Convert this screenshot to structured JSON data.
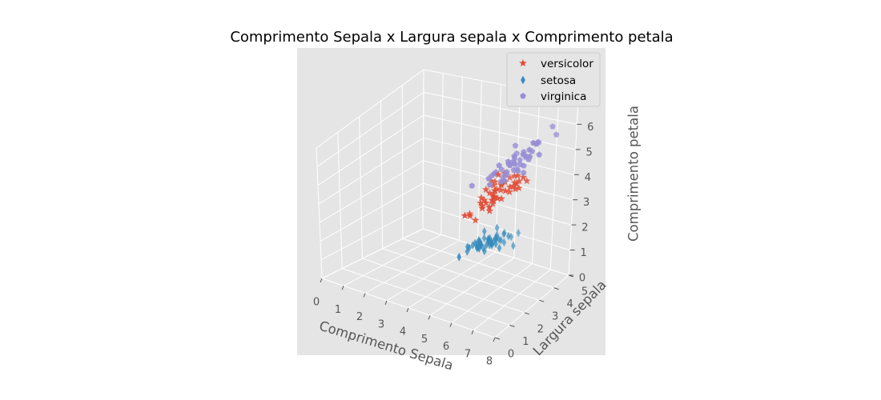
{
  "chart_data": {
    "type": "scatter",
    "projection": "3d",
    "title": "Comprimento Sepala x Largura sepala x Comprimento petala",
    "xlabel": "Comprimento Sepala",
    "ylabel": "Largura sepala",
    "zlabel": "Comprimento petala",
    "xlim": [
      0,
      8
    ],
    "ylim": [
      0,
      5
    ],
    "zlim": [
      0,
      7
    ],
    "xticks": [
      "0",
      "1",
      "2",
      "3",
      "4",
      "5",
      "6",
      "7",
      "8"
    ],
    "yticks": [
      "0",
      "1",
      "2",
      "3",
      "4",
      "5"
    ],
    "zticks": [
      "0",
      "1",
      "2",
      "3",
      "4",
      "5",
      "6",
      "7"
    ],
    "grid": true,
    "legend_position": "top-right",
    "colors": {
      "pane": "#e5e5e5",
      "grid": "#ffffff",
      "versicolor": "#e24a33",
      "setosa": "#348abd",
      "virginica": "#988ed5"
    },
    "series": [
      {
        "name": "versicolor",
        "marker": "star",
        "color": "#e24a33",
        "x": [
          7.0,
          6.4,
          6.9,
          5.5,
          6.5,
          5.7,
          6.3,
          4.9,
          6.6,
          5.2,
          5.0,
          5.9,
          6.0,
          6.1,
          5.6,
          6.7,
          5.6,
          5.8,
          6.2,
          5.6,
          5.9,
          6.1,
          6.3,
          6.1,
          6.4,
          6.6,
          6.8,
          6.7,
          6.0,
          5.7,
          5.5,
          5.5,
          5.8,
          6.0,
          5.4,
          6.0,
          6.7,
          6.3,
          5.6,
          5.5,
          5.5,
          6.1,
          5.8,
          5.0,
          5.6,
          5.7,
          5.7,
          6.2,
          5.1,
          5.7
        ],
        "y": [
          3.2,
          3.2,
          3.1,
          2.3,
          2.8,
          2.8,
          3.3,
          2.4,
          2.9,
          2.7,
          2.0,
          3.0,
          2.2,
          2.9,
          2.9,
          3.1,
          3.0,
          2.7,
          2.2,
          2.5,
          3.2,
          2.8,
          2.5,
          2.8,
          2.9,
          3.0,
          2.8,
          3.0,
          2.9,
          2.6,
          2.4,
          2.4,
          2.7,
          2.7,
          3.0,
          3.4,
          3.1,
          2.3,
          3.0,
          2.5,
          2.6,
          3.0,
          2.6,
          2.3,
          2.7,
          3.0,
          2.9,
          2.9,
          2.5,
          2.8
        ],
        "z": [
          4.7,
          4.5,
          4.9,
          4.0,
          4.6,
          4.5,
          4.7,
          3.3,
          4.6,
          3.9,
          3.5,
          4.2,
          4.0,
          4.7,
          3.6,
          4.4,
          4.5,
          4.1,
          4.5,
          3.9,
          4.8,
          4.0,
          4.9,
          4.7,
          4.3,
          4.4,
          4.8,
          5.0,
          4.5,
          3.5,
          3.8,
          3.7,
          3.9,
          5.1,
          4.5,
          4.5,
          4.7,
          4.4,
          4.1,
          4.0,
          4.4,
          4.6,
          4.0,
          3.3,
          4.2,
          4.2,
          4.2,
          4.3,
          3.0,
          4.1
        ]
      },
      {
        "name": "setosa",
        "marker": "thin_diamond",
        "color": "#348abd",
        "x": [
          5.1,
          4.9,
          4.7,
          4.6,
          5.0,
          5.4,
          4.6,
          5.0,
          4.4,
          4.9,
          5.4,
          4.8,
          4.8,
          4.3,
          5.8,
          5.7,
          5.4,
          5.1,
          5.7,
          5.1,
          5.4,
          5.1,
          4.6,
          5.1,
          4.8,
          5.0,
          5.0,
          5.2,
          5.2,
          4.7,
          4.8,
          5.4,
          5.2,
          5.5,
          4.9,
          5.0,
          5.5,
          4.9,
          4.4,
          5.1,
          5.0,
          4.5,
          4.4,
          5.0,
          5.1,
          4.8,
          5.1,
          4.6,
          5.3,
          5.0
        ],
        "y": [
          3.5,
          3.0,
          3.2,
          3.1,
          3.6,
          3.9,
          3.4,
          3.4,
          2.9,
          3.1,
          3.7,
          3.4,
          3.0,
          3.0,
          4.0,
          4.4,
          3.9,
          3.5,
          3.8,
          3.8,
          3.4,
          3.7,
          3.6,
          3.3,
          3.4,
          3.0,
          3.4,
          3.5,
          3.4,
          3.2,
          3.1,
          3.4,
          4.1,
          4.2,
          3.1,
          3.2,
          3.5,
          3.6,
          3.0,
          3.4,
          3.5,
          2.3,
          3.2,
          3.5,
          3.8,
          3.0,
          3.8,
          3.2,
          3.7,
          3.3
        ],
        "z": [
          1.4,
          1.4,
          1.3,
          1.5,
          1.4,
          1.7,
          1.4,
          1.5,
          1.4,
          1.5,
          1.5,
          1.6,
          1.4,
          1.1,
          1.2,
          1.5,
          1.3,
          1.4,
          1.7,
          1.5,
          1.7,
          1.5,
          1.0,
          1.7,
          1.9,
          1.6,
          1.6,
          1.5,
          1.4,
          1.6,
          1.6,
          1.5,
          1.5,
          1.4,
          1.5,
          1.2,
          1.3,
          1.4,
          1.3,
          1.5,
          1.3,
          1.3,
          1.3,
          1.6,
          1.9,
          1.4,
          1.6,
          1.4,
          1.5,
          1.4
        ]
      },
      {
        "name": "virginica",
        "marker": "pentagon",
        "color": "#988ed5",
        "x": [
          6.3,
          5.8,
          7.1,
          6.3,
          6.5,
          7.6,
          4.9,
          7.3,
          6.7,
          7.2,
          6.5,
          6.4,
          6.8,
          5.7,
          5.8,
          6.4,
          6.5,
          7.7,
          7.7,
          6.0,
          6.9,
          5.6,
          7.7,
          6.3,
          6.7,
          7.2,
          6.2,
          6.1,
          6.4,
          7.2,
          7.4,
          7.9,
          6.4,
          6.3,
          6.1,
          7.7,
          6.3,
          6.4,
          6.0,
          6.9,
          6.7,
          6.9,
          5.8,
          6.8,
          6.7,
          6.7,
          6.3,
          6.5,
          6.2,
          5.9
        ],
        "y": [
          3.3,
          2.7,
          3.0,
          2.9,
          3.0,
          3.0,
          2.5,
          2.9,
          2.5,
          3.6,
          3.2,
          2.7,
          3.0,
          2.5,
          2.8,
          3.2,
          3.0,
          3.8,
          2.6,
          2.2,
          3.2,
          2.8,
          2.8,
          2.7,
          3.3,
          3.2,
          2.8,
          3.0,
          2.8,
          3.0,
          2.8,
          3.8,
          2.8,
          2.8,
          2.6,
          3.0,
          3.4,
          3.1,
          3.0,
          3.1,
          3.1,
          3.1,
          2.7,
          3.2,
          3.3,
          3.0,
          2.5,
          3.0,
          3.4,
          3.0
        ],
        "z": [
          6.0,
          5.1,
          5.9,
          5.6,
          5.8,
          6.6,
          4.5,
          6.3,
          5.8,
          6.1,
          5.1,
          5.3,
          5.5,
          5.0,
          5.1,
          5.3,
          5.5,
          6.7,
          6.9,
          5.0,
          5.7,
          4.9,
          6.7,
          4.9,
          5.7,
          6.0,
          4.8,
          4.9,
          5.6,
          5.8,
          6.1,
          6.4,
          5.6,
          5.1,
          5.6,
          6.1,
          5.6,
          5.5,
          4.8,
          5.4,
          5.6,
          5.1,
          5.1,
          5.9,
          5.7,
          5.2,
          5.0,
          5.2,
          5.4,
          5.1
        ]
      }
    ]
  }
}
